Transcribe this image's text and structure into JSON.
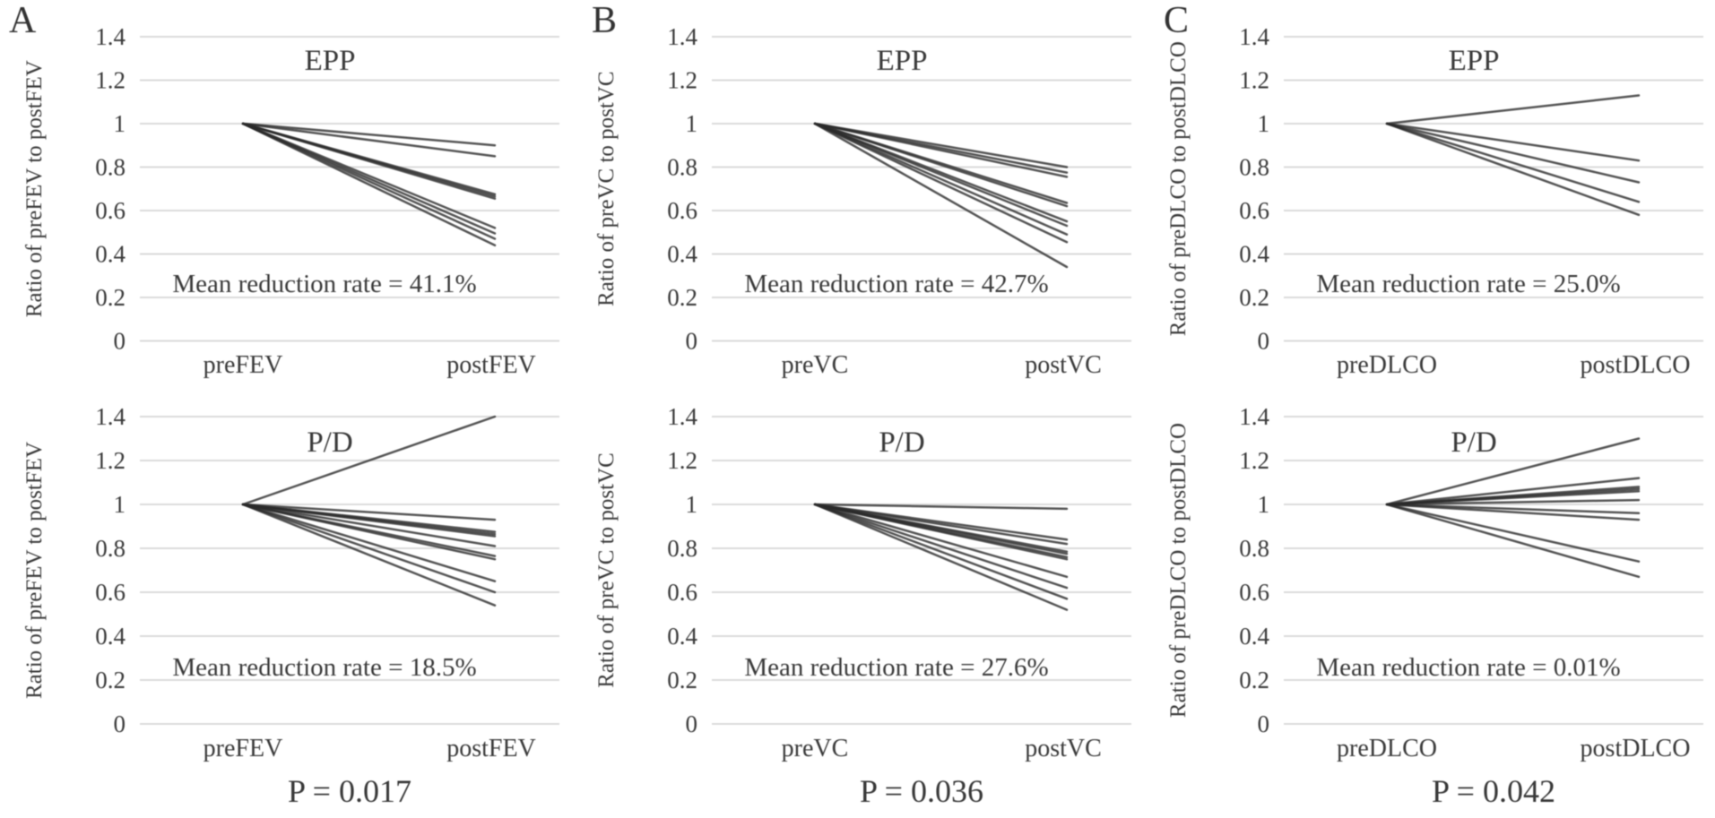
{
  "figure": {
    "background_color": "#ffffff",
    "text_color": "#3a3a3a",
    "line_color": "#2a2a2a",
    "gridline_color": "#dadada",
    "y_tick_labels": [
      "1.4",
      "1.2",
      "1",
      "0.8",
      "0.6",
      "0.4",
      "0.2",
      "0"
    ],
    "panels": [
      {
        "letter": "A",
        "p_value": "P = 0.017",
        "chart_indexes": [
          0,
          1
        ]
      },
      {
        "letter": "B",
        "p_value": "P = 0.036",
        "chart_indexes": [
          2,
          3
        ]
      },
      {
        "letter": "C",
        "p_value": "P = 0.042",
        "chart_indexes": [
          4,
          5
        ]
      }
    ]
  },
  "chart_data": [
    {
      "type": "line",
      "panel": "A",
      "title": "EPP",
      "ylabel": "Ratio of preFEV to postFEV",
      "categories": [
        "preFEV",
        "postFEV"
      ],
      "annotation": "Mean reduction rate = 41.1%",
      "ylim": [
        0,
        1.4
      ],
      "y_step": 0.2,
      "grid": true,
      "legend": "none",
      "series": [
        [
          1.0,
          0.9
        ],
        [
          1.0,
          0.85
        ],
        [
          1.0,
          0.675
        ],
        [
          1.0,
          0.665
        ],
        [
          1.0,
          0.655
        ],
        [
          1.0,
          0.52
        ],
        [
          1.0,
          0.495
        ],
        [
          1.0,
          0.47
        ],
        [
          1.0,
          0.44
        ]
      ]
    },
    {
      "type": "line",
      "panel": "A",
      "title": "P/D",
      "ylabel": "Ratio of preFEV to postFEV",
      "categories": [
        "preFEV",
        "postFEV"
      ],
      "annotation": "Mean reduction rate = 18.5%",
      "ylim": [
        0,
        1.4
      ],
      "y_step": 0.2,
      "grid": true,
      "legend": "none",
      "series": [
        [
          1.0,
          1.4
        ],
        [
          1.0,
          0.93
        ],
        [
          1.0,
          0.875
        ],
        [
          1.0,
          0.865
        ],
        [
          1.0,
          0.855
        ],
        [
          1.0,
          0.81
        ],
        [
          1.0,
          0.765
        ],
        [
          1.0,
          0.75
        ],
        [
          1.0,
          0.65
        ],
        [
          1.0,
          0.6
        ],
        [
          1.0,
          0.54
        ]
      ]
    },
    {
      "type": "line",
      "panel": "B",
      "title": "EPP",
      "ylabel": "Ratio of preVC to postVC",
      "categories": [
        "preVC",
        "postVC"
      ],
      "annotation": "Mean reduction rate = 42.7%",
      "ylim": [
        0,
        1.4
      ],
      "y_step": 0.2,
      "grid": true,
      "legend": "none",
      "series": [
        [
          1.0,
          0.8
        ],
        [
          1.0,
          0.775
        ],
        [
          1.0,
          0.755
        ],
        [
          1.0,
          0.635
        ],
        [
          1.0,
          0.62
        ],
        [
          1.0,
          0.55
        ],
        [
          1.0,
          0.53
        ],
        [
          1.0,
          0.49
        ],
        [
          1.0,
          0.455
        ],
        [
          1.0,
          0.34
        ]
      ]
    },
    {
      "type": "line",
      "panel": "B",
      "title": "P/D",
      "ylabel": "Ratio of preVC to postVC",
      "categories": [
        "preVC",
        "postVC"
      ],
      "annotation": "Mean reduction rate = 27.6%",
      "ylim": [
        0,
        1.4
      ],
      "y_step": 0.2,
      "grid": true,
      "legend": "none",
      "series": [
        [
          1.0,
          0.98
        ],
        [
          1.0,
          0.84
        ],
        [
          1.0,
          0.82
        ],
        [
          1.0,
          0.785
        ],
        [
          1.0,
          0.775
        ],
        [
          1.0,
          0.76
        ],
        [
          1.0,
          0.75
        ],
        [
          1.0,
          0.67
        ],
        [
          1.0,
          0.62
        ],
        [
          1.0,
          0.57
        ],
        [
          1.0,
          0.52
        ]
      ]
    },
    {
      "type": "line",
      "panel": "C",
      "title": "EPP",
      "ylabel": "Ratio of preDLCO to postDLCO",
      "categories": [
        "preDLCO",
        "postDLCO"
      ],
      "annotation": "Mean reduction rate = 25.0%",
      "ylim": [
        0,
        1.4
      ],
      "y_step": 0.2,
      "grid": true,
      "legend": "none",
      "series": [
        [
          1.0,
          1.13
        ],
        [
          1.0,
          0.83
        ],
        [
          1.0,
          0.73
        ],
        [
          1.0,
          0.64
        ],
        [
          1.0,
          0.58
        ]
      ]
    },
    {
      "type": "line",
      "panel": "C",
      "title": "P/D",
      "ylabel": "Ratio of preDLCO to postDLCO",
      "categories": [
        "preDLCO",
        "postDLCO"
      ],
      "annotation": "Mean reduction rate = 0.01%",
      "ylim": [
        0,
        1.4
      ],
      "y_step": 0.2,
      "grid": true,
      "legend": "none",
      "series": [
        [
          1.0,
          1.3
        ],
        [
          1.0,
          1.12
        ],
        [
          1.0,
          1.08
        ],
        [
          1.0,
          1.07
        ],
        [
          1.0,
          1.06
        ],
        [
          1.0,
          1.02
        ],
        [
          1.0,
          0.96
        ],
        [
          1.0,
          0.93
        ],
        [
          1.0,
          0.74
        ],
        [
          1.0,
          0.67
        ]
      ]
    }
  ]
}
